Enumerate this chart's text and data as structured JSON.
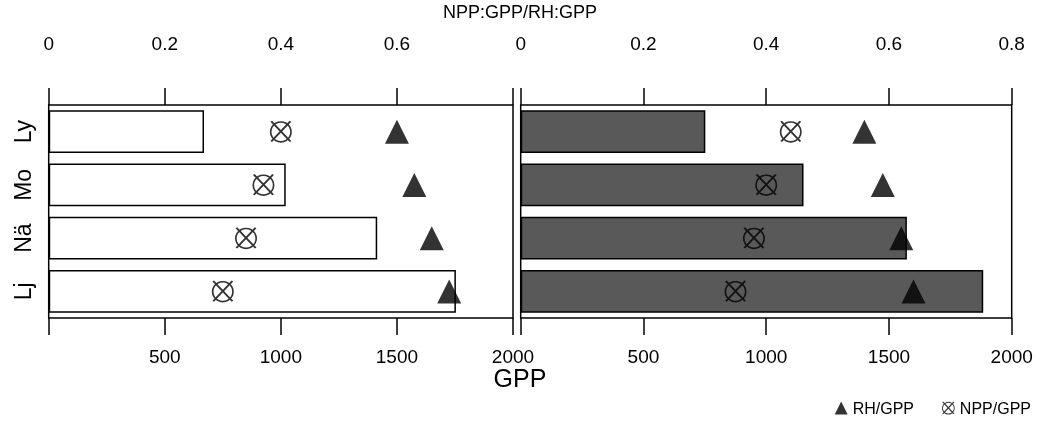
{
  "chart_data": [
    {
      "type": "bar",
      "orientation": "horizontal",
      "categories": [
        "Ly",
        "Mo",
        "Nä",
        "Lj"
      ],
      "xlabel": "GPP",
      "x2label": "NPP:GPP/RH:GPP",
      "xlim": [
        0,
        2000
      ],
      "xticks": [
        {
          "value": 0,
          "label": null
        },
        500,
        1000,
        1500,
        2000
      ],
      "x2lim": [
        0,
        0.8
      ],
      "x2ticks": [
        0,
        0.2,
        0.4,
        0.6,
        {
          "value": 0.8,
          "label": null
        }
      ],
      "grid": false,
      "legend": false,
      "series": [
        {
          "color": "#ffffff",
          "values": [
            669,
            1021,
            1415,
            1754
          ]
        },
        {
          "type": "scatter",
          "axis": "x2",
          "marker": "triangle",
          "color": "#000000",
          "values": [
            0.6,
            0.63,
            0.66,
            0.69
          ]
        },
        {
          "type": "scatter",
          "axis": "x2",
          "marker": "cross",
          "color": "#000000",
          "values": [
            0.4,
            0.37,
            0.34,
            0.3
          ]
        }
      ]
    },
    {
      "type": "bar",
      "orientation": "horizontal",
      "categories": [
        null,
        null,
        null,
        null
      ],
      "tick_labels": "x",
      "xlim": [
        0,
        2000
      ],
      "xticks": [
        {
          "value": 0,
          "label": null
        },
        500,
        1000,
        1500,
        2000
      ],
      "x2lim": [
        0,
        0.8
      ],
      "x2ticks": [
        0,
        0.2,
        0.4,
        0.6,
        0.8
      ],
      "grid": false,
      "legend": "bottom right",
      "series": [
        {
          "color": "#595959",
          "values": [
            752,
            1152,
            1573,
            1884
          ]
        },
        {
          "type": "scatter",
          "name": "RH/GPP",
          "axis": "x2",
          "marker": "triangle",
          "color": "#000000",
          "values": [
            0.56,
            0.59,
            0.62,
            0.64
          ]
        },
        {
          "type": "scatter",
          "name": "NPP/GPP",
          "axis": "x2",
          "marker": "cross",
          "color": "#000000",
          "values": [
            0.44,
            0.4,
            0.38,
            0.35
          ]
        }
      ]
    }
  ]
}
